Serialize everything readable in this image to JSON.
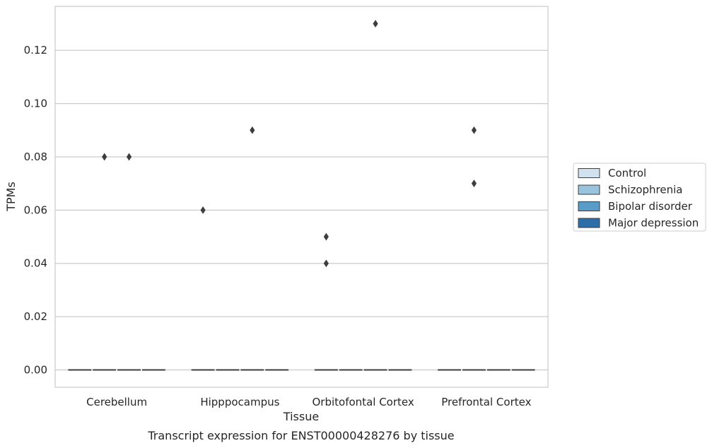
{
  "chart_data": {
    "type": "box",
    "title": "",
    "caption": "Transcript expression for ENST00000428276 by tissue",
    "xlabel": "Tissue",
    "ylabel": "TPMs",
    "ylim": [
      -0.0065,
      0.1365
    ],
    "yticks": [
      0.0,
      0.02,
      0.04,
      0.06,
      0.08,
      0.1,
      0.12
    ],
    "ytick_labels": [
      "0.00",
      "0.02",
      "0.04",
      "0.06",
      "0.08",
      "0.10",
      "0.12"
    ],
    "grid": "horizontal",
    "legend_position": "right",
    "categories": [
      "Cerebellum",
      "Hipppocampus",
      "Orbitofontal Cortex",
      "Prefrontal Cortex"
    ],
    "series": [
      {
        "name": "Control",
        "color": "#d2e1ef",
        "median": [
          0,
          0,
          0,
          0
        ],
        "outliers": [
          [],
          [
            0.06
          ],
          [
            0.04,
            0.05
          ],
          []
        ]
      },
      {
        "name": "Schizophrenia",
        "color": "#9ac3de",
        "median": [
          0,
          0,
          0,
          0
        ],
        "outliers": [
          [
            0.08
          ],
          [],
          [],
          [
            0.07,
            0.09
          ]
        ]
      },
      {
        "name": "Bipolar disorder",
        "color": "#5a9cc9",
        "median": [
          0,
          0,
          0,
          0
        ],
        "outliers": [
          [
            0.08
          ],
          [
            0.09
          ],
          [
            0.13
          ],
          []
        ]
      },
      {
        "name": "Major depression",
        "color": "#2d6ea8",
        "median": [
          0,
          0,
          0,
          0
        ],
        "outliers": [
          [],
          [],
          [],
          []
        ]
      }
    ]
  }
}
